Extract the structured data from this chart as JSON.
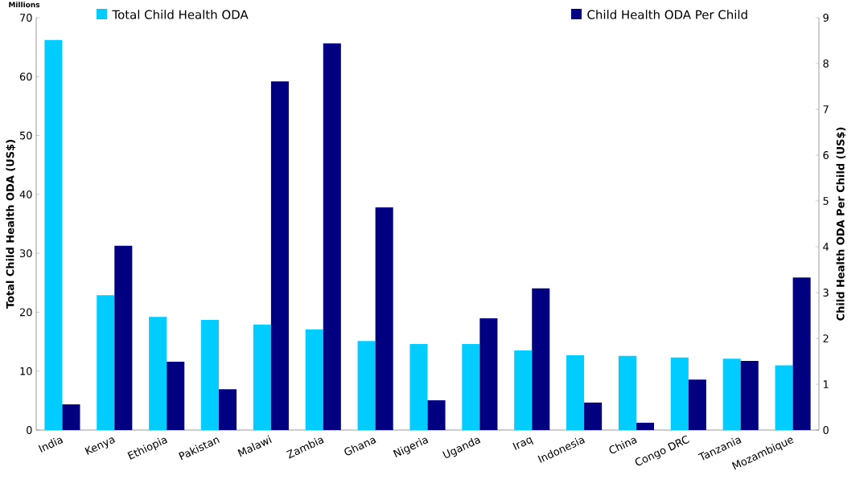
{
  "chart_data": {
    "type": "bar",
    "xlabel": null,
    "ylabel": "Total Child Health ODA (US$)",
    "y2label": "Child Health ODA Per Child (US$)",
    "annotations": [
      "Millions"
    ],
    "categories": [
      "India",
      "Kenya",
      "Ethiopia",
      "Pakistan",
      "Malawi",
      "Zambia",
      "Ghana",
      "Nigeria",
      "Uganda",
      "Iraq",
      "Indonesia",
      "China",
      "Congo DRC",
      "Tanzania",
      "Mozambique"
    ],
    "series": [
      {
        "name": "Total Child Health ODA",
        "color": "#00ccff",
        "values": [
          66.2,
          22.9,
          19.2,
          18.7,
          17.9,
          17.1,
          15.1,
          14.6,
          14.6,
          13.5,
          12.7,
          12.6,
          12.3,
          12.1,
          11.0
        ]
      },
      {
        "name": "Child Health ODA Per Child",
        "color": "#000080",
        "axis": "y2",
        "values": [
          0.56,
          4.02,
          1.49,
          0.89,
          7.61,
          8.44,
          4.86,
          0.65,
          2.44,
          3.09,
          0.6,
          0.16,
          1.1,
          1.51,
          3.33
        ]
      }
    ],
    "ylim": [
      0,
      70
    ],
    "yticks": [
      0,
      10,
      20,
      30,
      40,
      50,
      60,
      70
    ],
    "y2lim": [
      0,
      9
    ],
    "y2ticks": [
      0,
      1,
      2,
      3,
      4,
      5,
      6,
      7,
      8,
      9
    ],
    "grid": false,
    "legend": "top"
  }
}
